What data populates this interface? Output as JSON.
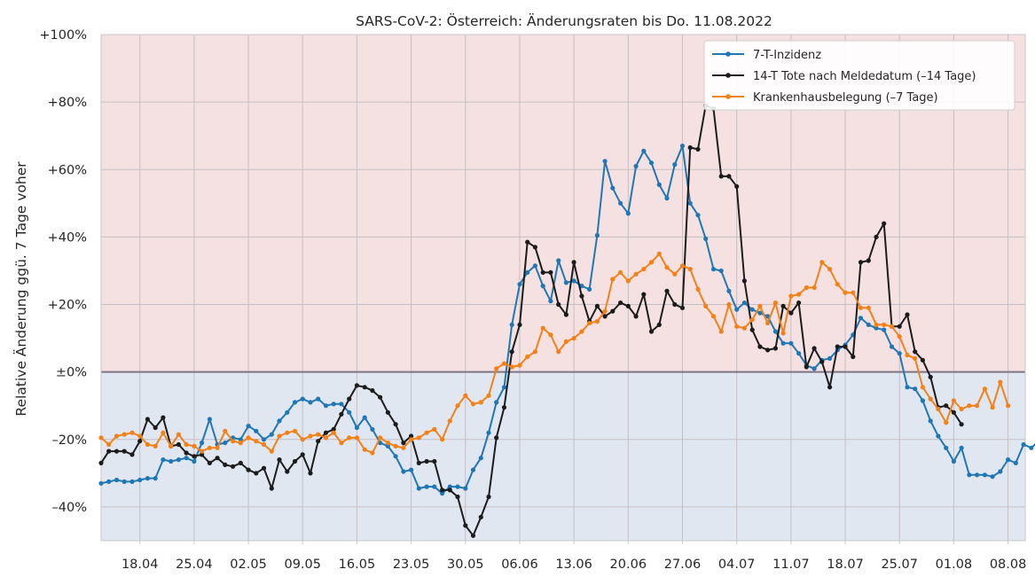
{
  "chart_data": {
    "type": "line",
    "title": "SARS-CoV-2: Österreich: Änderungsraten bis Do. 11.08.2022",
    "xlabel": "",
    "ylabel": "Relative Änderung ggü. 7 Tage voher",
    "x_start": "2022-04-13",
    "ylim": [
      -50,
      100
    ],
    "yticks": [
      {
        "value": 100,
        "label": "+100%"
      },
      {
        "value": 80,
        "label": "+80%"
      },
      {
        "value": 60,
        "label": "+60%"
      },
      {
        "value": 40,
        "label": "+40%"
      },
      {
        "value": 20,
        "label": "+20%"
      },
      {
        "value": 0,
        "label": "±0%"
      },
      {
        "value": -20,
        "label": "–20%"
      },
      {
        "value": -40,
        "label": "–40%"
      }
    ],
    "xticks": [
      "18.04",
      "25.04",
      "02.05",
      "09.05",
      "16.05",
      "23.05",
      "30.05",
      "06.06",
      "13.06",
      "20.06",
      "27.06",
      "04.07",
      "11.07",
      "18.07",
      "25.07",
      "01.08",
      "08.08"
    ],
    "grid": true,
    "legend_position": "top-right",
    "colors": {
      "positive_band": "#f5e1e1",
      "negative_band": "#e1e7f0",
      "zero_line": "#7d7485",
      "grid": "#c4bfc4",
      "frame": "#c8c8c8"
    },
    "series": [
      {
        "name": "7-T-Inzidenz",
        "color": "#1f77b4",
        "values": [
          -33,
          -32.5,
          -32,
          -32.5,
          -32.5,
          -32,
          -31.5,
          -31.5,
          -26,
          -26.5,
          -26,
          -25.5,
          -26.5,
          -21,
          -14,
          -21.5,
          -21,
          -19.5,
          -20,
          -16,
          -17.5,
          -20,
          -18.5,
          -14.5,
          -12,
          -9,
          -8,
          -9,
          -8,
          -10,
          -9.5,
          -9.5,
          -12,
          -16.5,
          -13.5,
          -17,
          -21,
          -22,
          -25,
          -29.5,
          -29,
          -34.5,
          -34,
          -34,
          -36,
          -34,
          -34,
          -34.5,
          -29,
          -25.5,
          -18,
          -9,
          -4.5,
          14,
          26,
          29.5,
          31.5,
          25.5,
          21,
          33,
          26.5,
          27,
          25.5,
          24.5,
          40.5,
          62.5,
          54.5,
          50,
          47,
          61,
          65.5,
          62,
          55.5,
          51.5,
          61.5,
          67,
          50,
          46.5,
          39.5,
          30.5,
          30,
          24,
          18.5,
          20.5,
          18.5,
          17.5,
          16.5,
          12,
          8.5,
          8.5,
          5.5,
          2,
          1,
          3.5,
          4,
          6.5,
          8,
          11,
          16,
          14,
          13,
          12.5,
          7.5,
          5.5,
          -4.5,
          -5,
          -8.5,
          -14.5,
          -19,
          -22.5,
          -26.5,
          -22.5,
          -30.5,
          -30.5,
          -30.5,
          -31,
          -29.5,
          -26,
          -27,
          -21.5,
          -22.5,
          -20.5,
          -15.5
        ]
      },
      {
        "name": "14-T Tote nach Meldedatum (–14 Tage)",
        "color": "#1c1c1c",
        "values": [
          -27,
          -23.5,
          -23.5,
          -23.5,
          -24.5,
          -20.5,
          -14,
          -16.5,
          -13.5,
          -22,
          -21.5,
          -24,
          -25,
          -24.5,
          -27,
          -25.5,
          -27.5,
          -28,
          -27,
          -29,
          -30,
          -28.5,
          -34.5,
          -26,
          -29.5,
          -26.5,
          -24.5,
          -30,
          -20.5,
          -18,
          -17,
          -12.5,
          -8,
          -4,
          -4.5,
          -5.5,
          -7.5,
          -12,
          -15.5,
          -21,
          -19,
          -27,
          -26.5,
          -26.5,
          -35,
          -35,
          -37,
          -45.5,
          -48.5,
          -43,
          -37,
          -19.5,
          -10.5,
          6,
          14,
          38.5,
          37,
          29.5,
          29.5,
          20,
          17,
          32.5,
          22.5,
          15,
          19.5,
          16.5,
          18,
          20.5,
          19.5,
          16.5,
          23,
          12,
          14,
          24,
          20,
          19,
          66.5,
          66,
          79,
          78,
          58,
          58,
          55,
          27,
          12.5,
          7.5,
          6.5,
          7,
          19.5,
          17.5,
          20.5,
          1.5,
          7,
          3,
          -4.5,
          7.5,
          7.5,
          4.5,
          32.5,
          33,
          40,
          44,
          13.5,
          13.5,
          17,
          6,
          3.5,
          -1.5,
          -10.5,
          -10,
          -12,
          -15.5
        ]
      },
      {
        "name": "Krankenhausbelegung (–7 Tage)",
        "color": "#f28117",
        "values": [
          -19.5,
          -21.5,
          -19,
          -18.5,
          -18,
          -19,
          -21.5,
          -22,
          -18,
          -22,
          -18.5,
          -21.5,
          -22,
          -23.5,
          -22.5,
          -22.5,
          -17.5,
          -20.5,
          -21,
          -19.5,
          -20.5,
          -21.5,
          -23.5,
          -19,
          -18,
          -17.5,
          -20,
          -19,
          -18.5,
          -19.5,
          -18,
          -21,
          -19.5,
          -19.5,
          -23,
          -24,
          -19.5,
          -21,
          -22,
          -22.5,
          -20,
          -19.5,
          -18,
          -17,
          -20,
          -14.5,
          -10,
          -7,
          -9.5,
          -9,
          -7,
          1,
          2.5,
          1.5,
          2,
          4.5,
          6,
          13,
          11,
          6,
          9,
          10,
          12,
          14.5,
          15,
          18,
          27.5,
          29.5,
          27,
          29,
          30.5,
          32.5,
          35,
          31,
          29,
          31.5,
          30.5,
          24.5,
          19.5,
          16.5,
          12,
          20,
          13.5,
          13,
          15.5,
          19.5,
          14.5,
          20.5,
          11.5,
          22.5,
          23,
          25,
          25,
          32.5,
          30.5,
          26,
          23.5,
          23.5,
          19,
          19,
          14,
          14,
          13.5,
          10.5,
          5,
          4,
          -4.5,
          -8,
          -11,
          -15,
          -8.5,
          -11,
          -10,
          -10,
          -5,
          -10.5,
          -3,
          -10
        ]
      }
    ]
  }
}
